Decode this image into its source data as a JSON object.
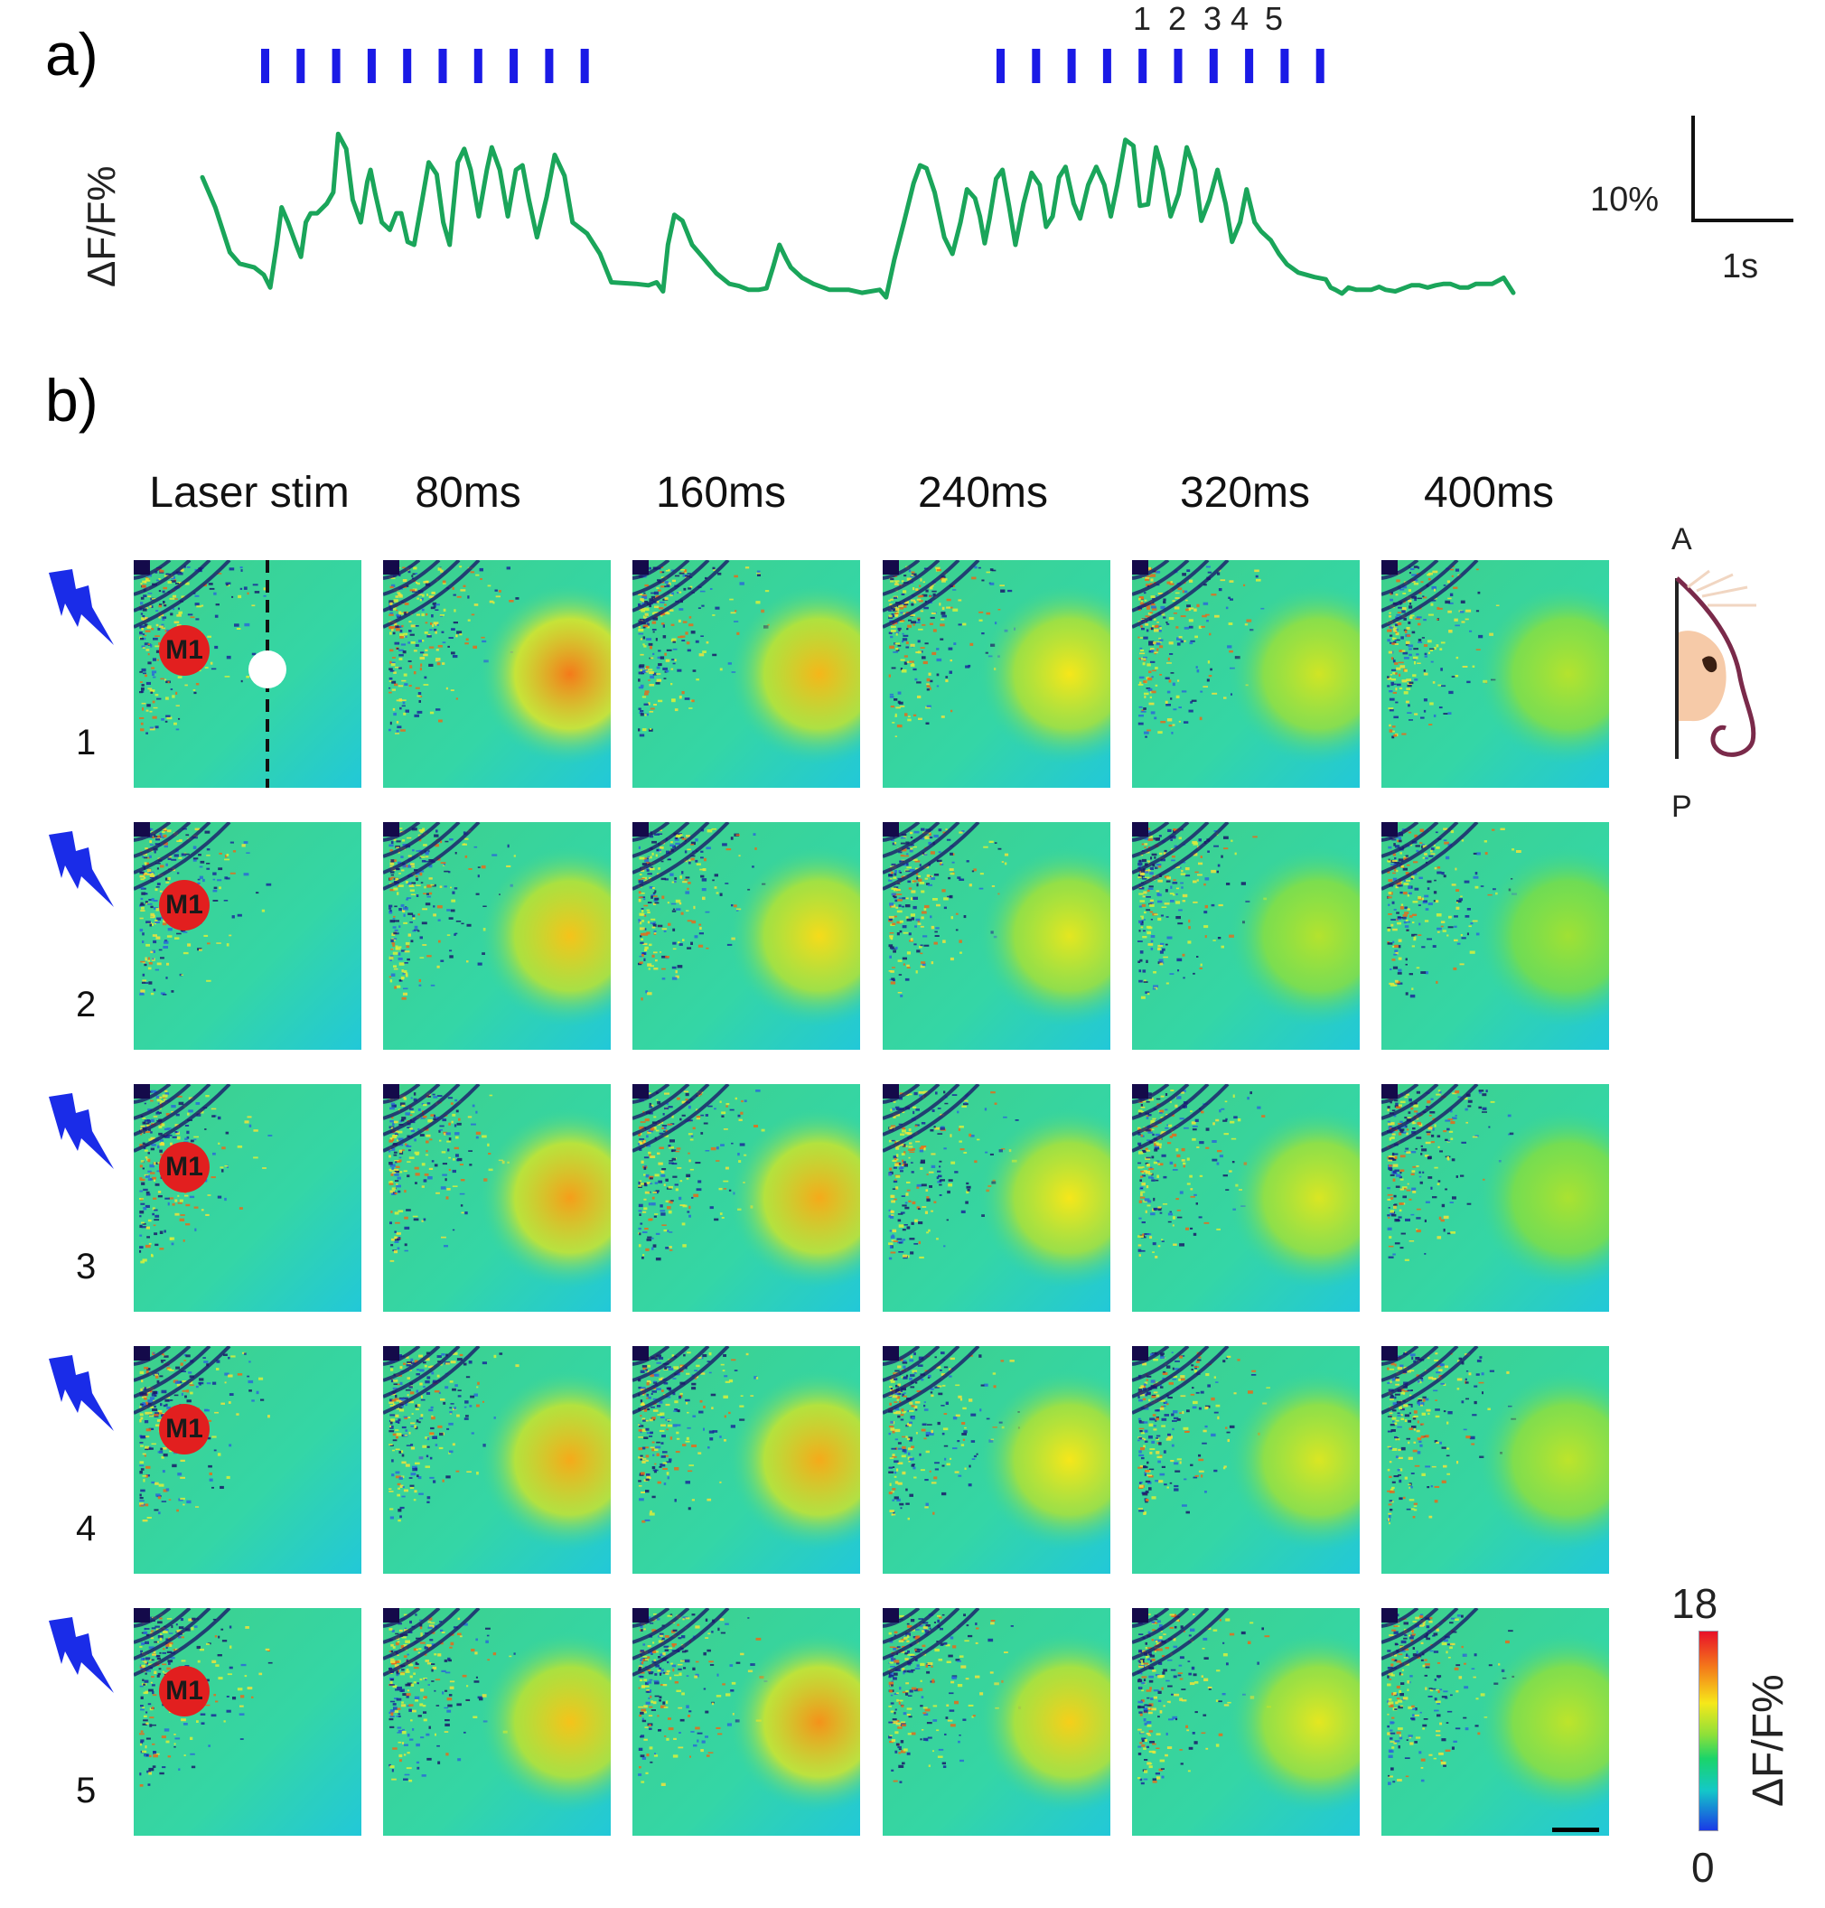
{
  "panel_a": {
    "label": "a)",
    "y_axis_label": "ΔF/F%",
    "scale_bar": {
      "vertical_label": "10%",
      "horizontal_label": "1s"
    },
    "pulse_numbers": [
      "1",
      "2",
      "3",
      "4",
      "5"
    ],
    "colors": {
      "trace": "#1aa55a",
      "pulses": "#1a1ae6"
    }
  },
  "panel_b": {
    "label": "b)",
    "columns": [
      "Laser stim",
      "80ms",
      "160ms",
      "240ms",
      "320ms",
      "400ms"
    ],
    "rows": [
      "1",
      "2",
      "3",
      "4",
      "5"
    ],
    "region_label": "M1",
    "orientation": {
      "anterior": "A",
      "posterior": "P"
    },
    "colorbar": {
      "max": "18",
      "min": "0",
      "label": "ΔF/F%"
    },
    "response_intensity": [
      [
        0.0,
        1.0,
        0.75,
        0.55,
        0.35,
        0.2
      ],
      [
        0.0,
        0.7,
        0.6,
        0.45,
        0.2,
        0.1
      ],
      [
        0.0,
        0.85,
        0.8,
        0.55,
        0.4,
        0.15
      ],
      [
        0.0,
        0.8,
        0.8,
        0.55,
        0.4,
        0.25
      ],
      [
        0.0,
        0.7,
        0.9,
        0.65,
        0.45,
        0.25
      ]
    ],
    "colors": {
      "m1_marker": "#e21f1f",
      "laser_icon": "#1a2ce8"
    }
  }
}
